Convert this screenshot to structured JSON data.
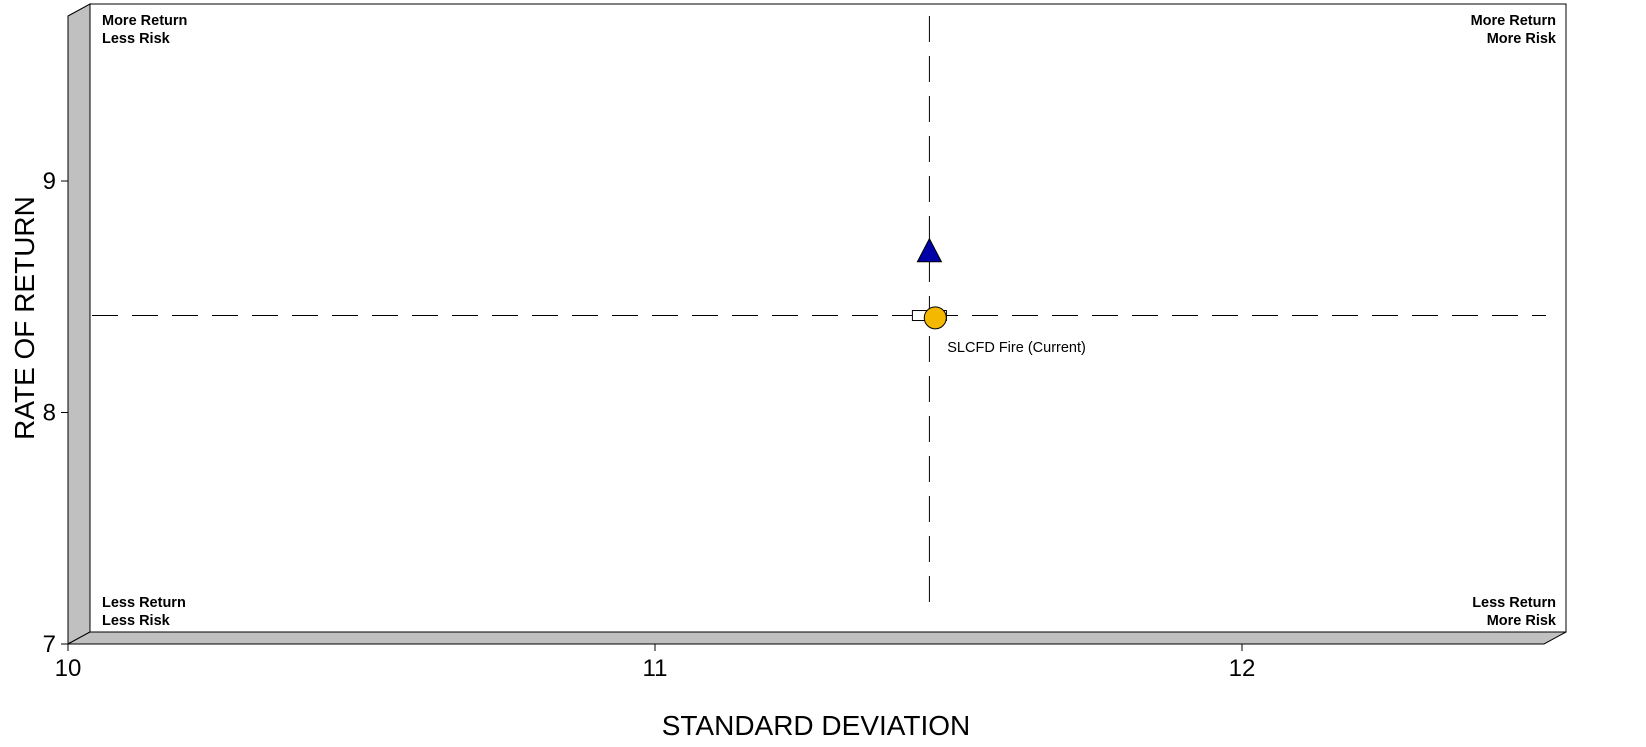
{
  "chart_data": {
    "type": "scatter",
    "xlabel": "STANDARD DEVIATION",
    "ylabel": "RATE OF RETURN",
    "xlim": [
      10,
      12.5
    ],
    "ylim": [
      7,
      9.6
    ],
    "xticks": [
      10,
      11,
      12
    ],
    "yticks": [
      7,
      8,
      9
    ],
    "grid": false,
    "quadrant_labels": {
      "top_left": [
        "More Return",
        "Less Risk"
      ],
      "top_right": [
        "More Return",
        "More Risk"
      ],
      "bottom_left": [
        "Less Return",
        "Less Risk"
      ],
      "bottom_right": [
        "Less Return",
        "More Risk"
      ]
    },
    "reference_lines": {
      "x": 11.43,
      "y": 8.38
    },
    "points": [
      {
        "x": 11.43,
        "y": 8.66,
        "marker": "triangle",
        "color": "#0000a8"
      },
      {
        "x": 11.43,
        "y": 8.38,
        "marker": "square",
        "color": "#ffffff"
      },
      {
        "x": 11.44,
        "y": 8.37,
        "marker": "circle",
        "color": "#f5b800",
        "label": "SLCFD Fire (Current)"
      }
    ]
  },
  "colors": {
    "wall": "#c0c0c0",
    "axis": "#000000",
    "triangle": "#0000a8",
    "circle": "#f5b800"
  }
}
